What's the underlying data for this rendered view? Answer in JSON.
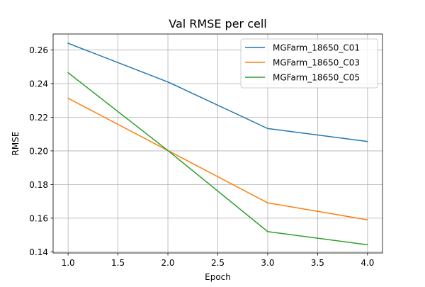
{
  "chart_data": {
    "type": "line",
    "title": "Val RMSE per cell",
    "xlabel": "Epoch",
    "ylabel": "RMSE",
    "xlim": [
      0.85,
      4.15
    ],
    "ylim": [
      0.1393,
      0.2695
    ],
    "xticks": [
      1.0,
      1.5,
      2.0,
      2.5,
      3.0,
      3.5,
      4.0
    ],
    "xtick_labels": [
      "1.0",
      "1.5",
      "2.0",
      "2.5",
      "3.0",
      "3.5",
      "4.0"
    ],
    "yticks": [
      0.14,
      0.16,
      0.18,
      0.2,
      0.22,
      0.24,
      0.26
    ],
    "ytick_labels": [
      "0.14",
      "0.16",
      "0.18",
      "0.20",
      "0.22",
      "0.24",
      "0.26"
    ],
    "grid": true,
    "legend_position": "top-right",
    "x": [
      1,
      2,
      3,
      4
    ],
    "series": [
      {
        "name": "MGFarm_18650_C01",
        "color": "#1f77b4",
        "values": [
          0.264,
          0.241,
          0.2133,
          0.2056
        ]
      },
      {
        "name": "MGFarm_18650_C03",
        "color": "#ff7f0e",
        "values": [
          0.2313,
          0.2002,
          0.1691,
          0.159
        ]
      },
      {
        "name": "MGFarm_18650_C05",
        "color": "#2ca02c",
        "values": [
          0.2465,
          0.2002,
          0.152,
          0.1442
        ]
      }
    ]
  }
}
